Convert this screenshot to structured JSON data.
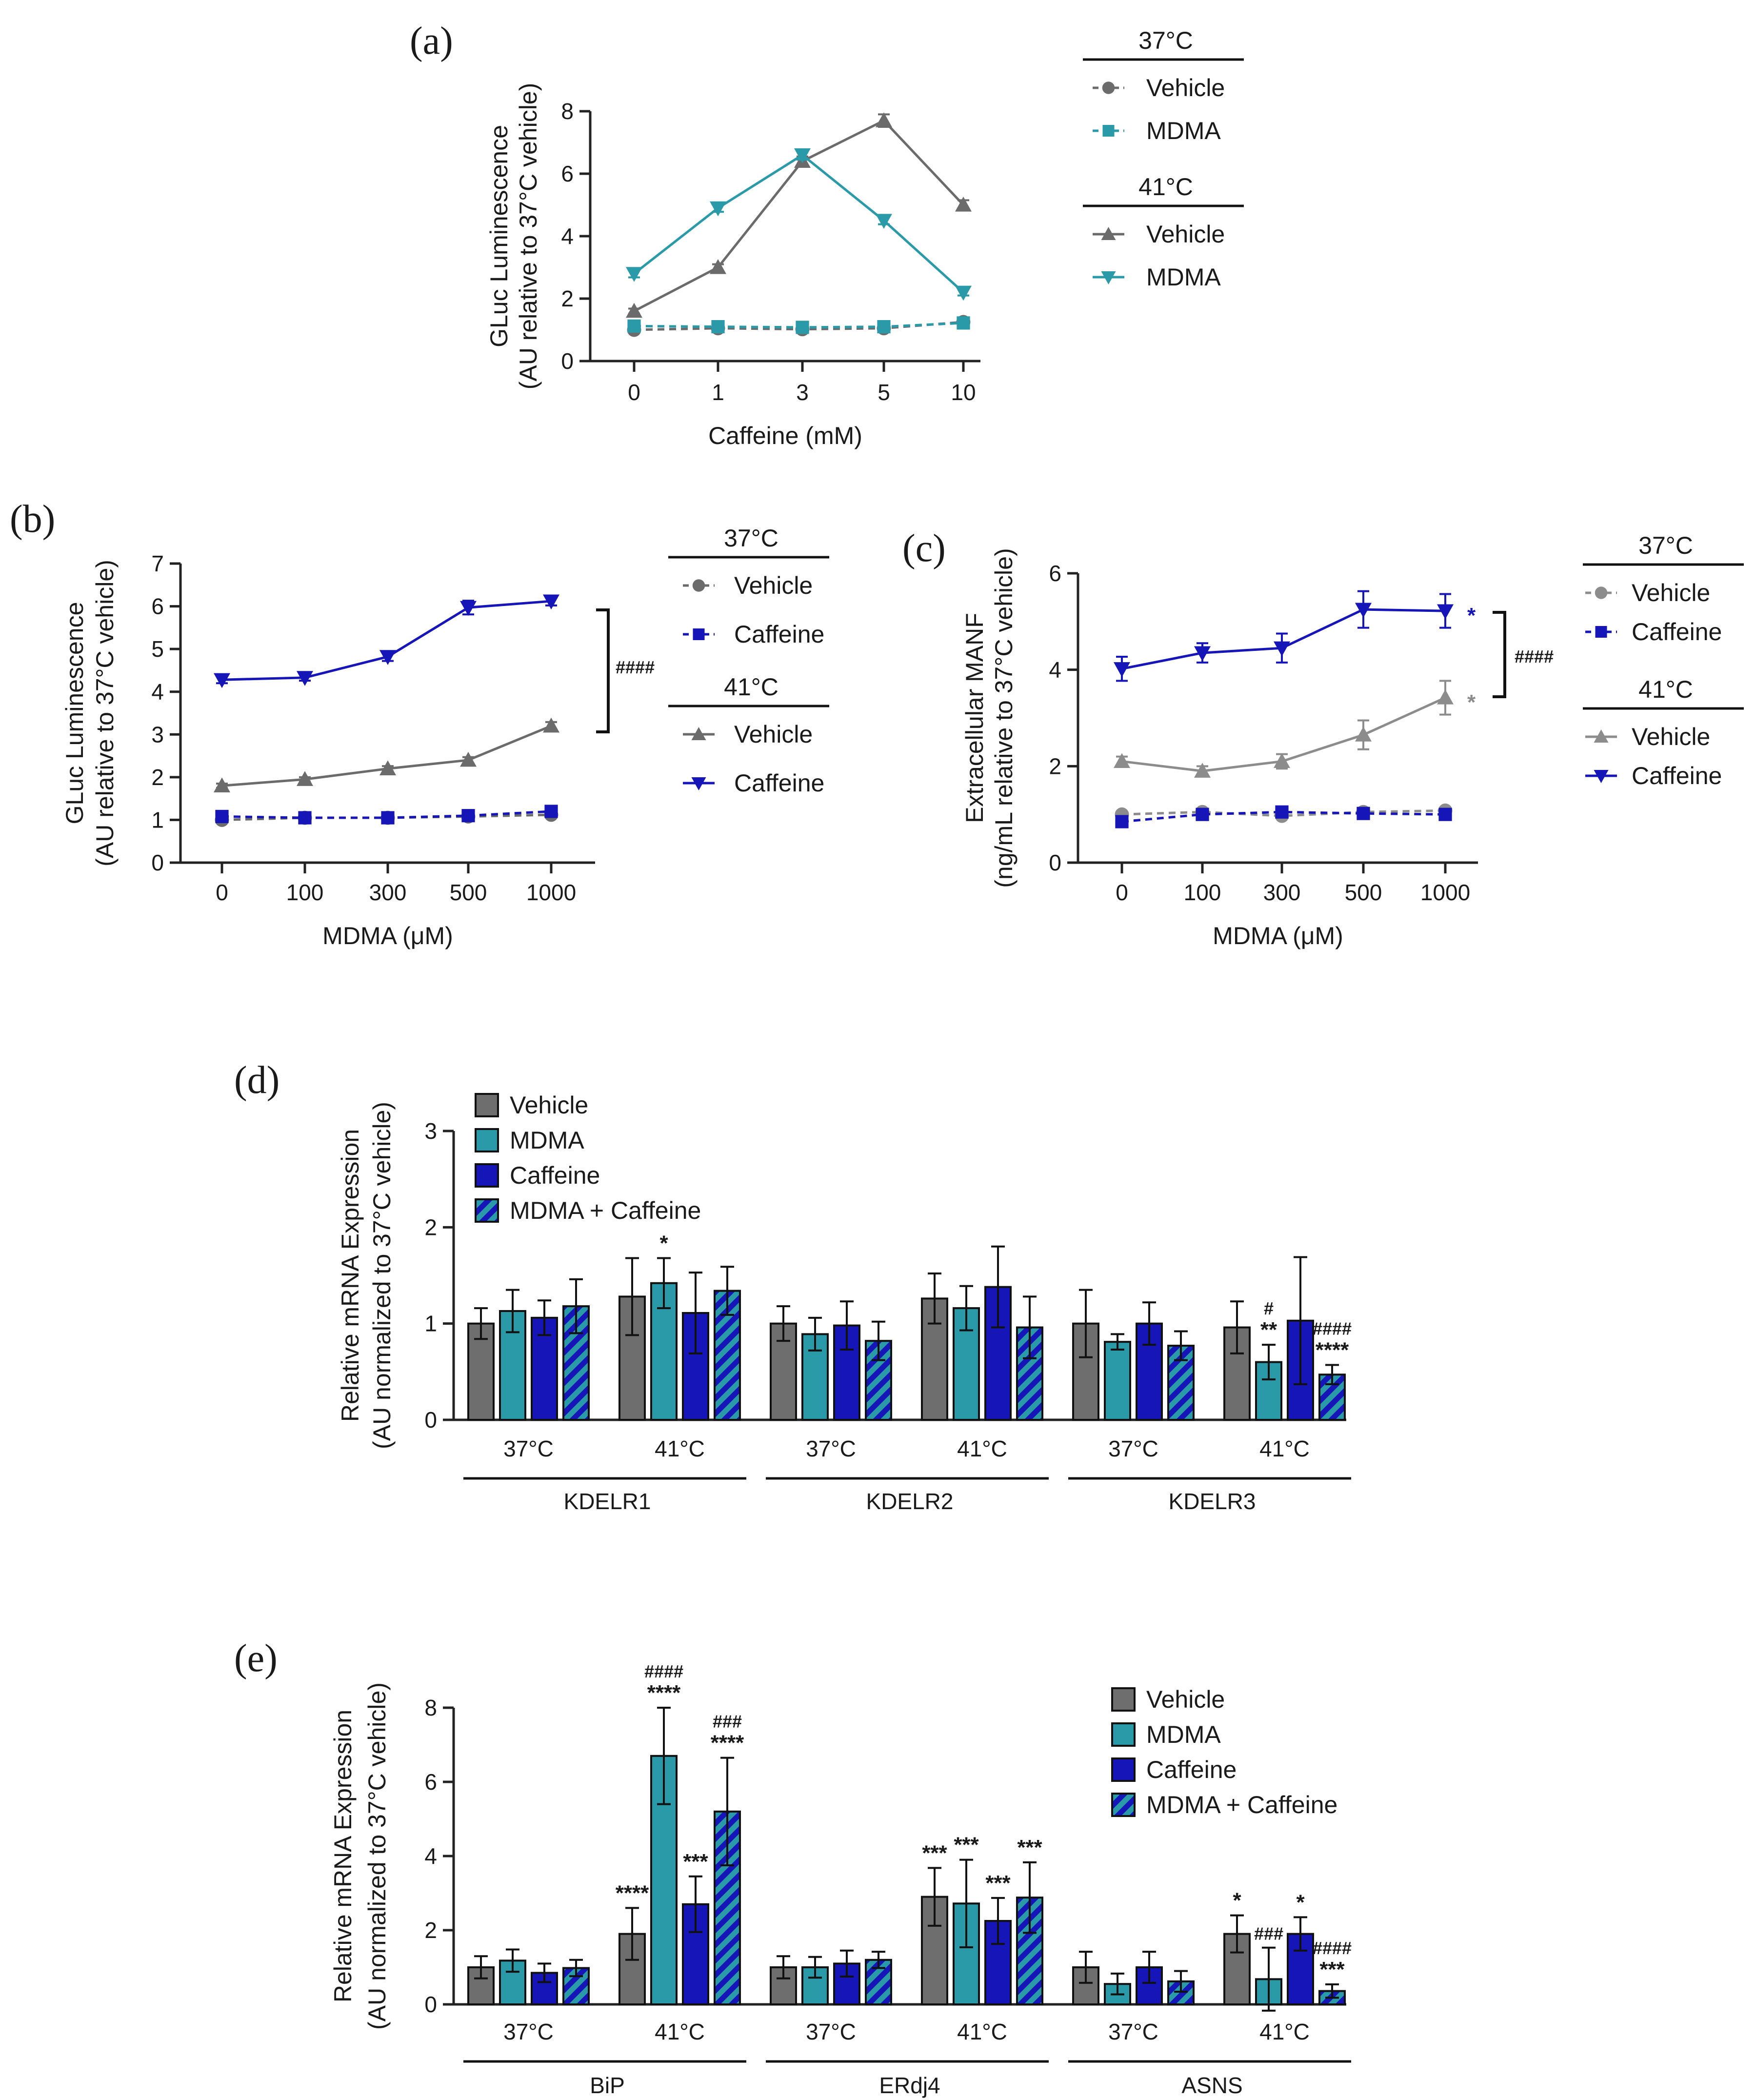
{
  "panels": [
    {
      "id": "a",
      "letter": "(a)",
      "chart_data": {
        "type": "line",
        "xlabel": "Caffeine (mM)",
        "ylabel_lines": [
          "GLuc Luminescence",
          "(AU relative to 37°C vehicle)"
        ],
        "categories": [
          "0",
          "1",
          "3",
          "5",
          "10"
        ],
        "ylim": [
          0,
          8
        ],
        "yticks": [
          0,
          2,
          4,
          6,
          8
        ],
        "legend": [
          {
            "header": "37°C",
            "entries": [
              "Vehicle",
              "MDMA"
            ]
          },
          {
            "header": "41°C",
            "entries": [
              "Vehicle",
              "MDMA"
            ]
          }
        ],
        "series": [
          {
            "name": "37°C Vehicle",
            "color": "#6b6b6b",
            "marker": "circle",
            "dashed": true,
            "values": [
              1.0,
              1.05,
              1.02,
              1.05,
              1.25
            ],
            "errors": [
              0.06,
              0.06,
              0.06,
              0.06,
              0.08
            ]
          },
          {
            "name": "37°C MDMA",
            "color": "#2b9aa8",
            "marker": "square",
            "dashed": true,
            "values": [
              1.12,
              1.1,
              1.08,
              1.1,
              1.22
            ],
            "errors": [
              0.06,
              0.06,
              0.06,
              0.06,
              0.06
            ]
          },
          {
            "name": "41°C Vehicle",
            "color": "#6b6b6b",
            "marker": "triangle-up",
            "dashed": false,
            "values": [
              1.6,
              3.0,
              6.4,
              7.7,
              5.0
            ],
            "errors": [
              0.08,
              0.1,
              0.15,
              0.2,
              0.15
            ]
          },
          {
            "name": "41°C MDMA",
            "color": "#2b9aa8",
            "marker": "triangle-down",
            "dashed": false,
            "values": [
              2.8,
              4.9,
              6.6,
              4.5,
              2.2
            ],
            "errors": [
              0.12,
              0.12,
              0.15,
              0.12,
              0.1
            ]
          }
        ]
      }
    },
    {
      "id": "b",
      "letter": "(b)",
      "chart_data": {
        "type": "line",
        "xlabel": "MDMA (μM)",
        "ylabel_lines": [
          "GLuc Luminescence",
          "(AU relative to 37°C vehicle)"
        ],
        "categories": [
          "0",
          "100",
          "300",
          "500",
          "1000"
        ],
        "ylim": [
          0,
          7
        ],
        "yticks": [
          0,
          1,
          2,
          3,
          4,
          5,
          6,
          7
        ],
        "legend": [
          {
            "header": "37°C",
            "entries": [
              "Vehicle",
              "Caffeine"
            ]
          },
          {
            "header": "41°C",
            "entries": [
              "Vehicle",
              "Caffeine"
            ]
          }
        ],
        "bracket_label": "####",
        "series": [
          {
            "name": "37°C Vehicle",
            "color": "#6b6b6b",
            "marker": "circle",
            "dashed": true,
            "values": [
              1.0,
              1.05,
              1.05,
              1.08,
              1.12
            ],
            "errors": [
              0.04,
              0.04,
              0.04,
              0.04,
              0.05
            ]
          },
          {
            "name": "37°C Caffeine",
            "color": "#1616b8",
            "marker": "square",
            "dashed": true,
            "values": [
              1.08,
              1.05,
              1.05,
              1.1,
              1.2
            ],
            "errors": [
              0.04,
              0.04,
              0.04,
              0.04,
              0.05
            ]
          },
          {
            "name": "41°C Vehicle",
            "color": "#6b6b6b",
            "marker": "triangle-up",
            "dashed": false,
            "values": [
              1.8,
              1.95,
              2.2,
              2.4,
              3.2
            ],
            "errors": [
              0.05,
              0.05,
              0.06,
              0.07,
              0.09
            ]
          },
          {
            "name": "41°C Caffeine",
            "color": "#1616b8",
            "marker": "triangle-down",
            "dashed": false,
            "values": [
              4.28,
              4.33,
              4.82,
              5.97,
              6.12
            ],
            "errors": [
              0.08,
              0.07,
              0.1,
              0.16,
              0.1
            ]
          }
        ]
      }
    },
    {
      "id": "c",
      "letter": "(c)",
      "chart_data": {
        "type": "line",
        "xlabel": "MDMA (μM)",
        "ylabel_lines": [
          "Extracellular MANF",
          "(ng/mL relative to 37°C vehicle)"
        ],
        "categories": [
          "0",
          "100",
          "300",
          "500",
          "1000"
        ],
        "ylim": [
          0,
          6
        ],
        "yticks": [
          0,
          2,
          4,
          6
        ],
        "legend": [
          {
            "header": "37°C",
            "entries": [
              "Vehicle",
              "Caffeine"
            ]
          },
          {
            "header": "41°C",
            "entries": [
              "Vehicle",
              "Caffeine"
            ]
          }
        ],
        "bracket_label": "####",
        "star_label": "*",
        "series": [
          {
            "name": "37°C Vehicle",
            "color": "#8c8c8c",
            "marker": "circle",
            "dashed": true,
            "values": [
              1.0,
              1.05,
              0.97,
              1.05,
              1.08
            ],
            "errors": [
              0.05,
              0.05,
              0.05,
              0.05,
              0.05
            ]
          },
          {
            "name": "37°C Caffeine",
            "color": "#1616b8",
            "marker": "square",
            "dashed": true,
            "values": [
              0.85,
              1.0,
              1.05,
              1.02,
              1.0
            ],
            "errors": [
              0.05,
              0.05,
              0.05,
              0.05,
              0.05
            ]
          },
          {
            "name": "41°C Vehicle",
            "color": "#8c8c8c",
            "marker": "triangle-up",
            "dashed": false,
            "values": [
              2.1,
              1.9,
              2.1,
              2.65,
              3.42
            ],
            "errors": [
              0.1,
              0.1,
              0.15,
              0.3,
              0.35
            ]
          },
          {
            "name": "41°C Caffeine",
            "color": "#1616b8",
            "marker": "triangle-down",
            "dashed": false,
            "values": [
              4.02,
              4.35,
              4.45,
              5.25,
              5.22
            ],
            "errors": [
              0.25,
              0.2,
              0.3,
              0.38,
              0.35
            ]
          }
        ]
      }
    },
    {
      "id": "d",
      "letter": "(d)",
      "chart_data": {
        "type": "bar",
        "ylabel_lines": [
          "Relative mRNA Expression",
          "(AU normalized to 37°C vehicle)"
        ],
        "ylim": [
          0,
          3
        ],
        "yticks": [
          0,
          1,
          2,
          3
        ],
        "legend_entries": [
          "Vehicle",
          "MDMA",
          "Caffeine",
          "MDMA + Caffeine"
        ],
        "colors": [
          "#6e6e6e",
          "#2b9aa8",
          "#1616b8",
          "hatched"
        ],
        "genes": [
          {
            "name": "KDELR1",
            "groups": [
              {
                "label": "37°C",
                "values": [
                  1.0,
                  1.13,
                  1.06,
                  1.18
                ],
                "errors": [
                  0.16,
                  0.22,
                  0.18,
                  0.28
                ],
                "sig": [
                  "",
                  "",
                  "",
                  ""
                ]
              },
              {
                "label": "41°C",
                "values": [
                  1.28,
                  1.42,
                  1.11,
                  1.34
                ],
                "errors": [
                  0.4,
                  0.26,
                  0.42,
                  0.25
                ],
                "sig": [
                  "",
                  "*",
                  "",
                  ""
                ]
              }
            ]
          },
          {
            "name": "KDELR2",
            "groups": [
              {
                "label": "37°C",
                "values": [
                  1.0,
                  0.89,
                  0.98,
                  0.82
                ],
                "errors": [
                  0.18,
                  0.17,
                  0.25,
                  0.2
                ],
                "sig": [
                  "",
                  "",
                  "",
                  ""
                ]
              },
              {
                "label": "41°C",
                "values": [
                  1.26,
                  1.16,
                  1.38,
                  0.96
                ],
                "errors": [
                  0.26,
                  0.23,
                  0.42,
                  0.32
                ],
                "sig": [
                  "",
                  "",
                  "",
                  ""
                ]
              }
            ]
          },
          {
            "name": "KDELR3",
            "groups": [
              {
                "label": "37°C",
                "values": [
                  1.0,
                  0.81,
                  1.0,
                  0.77
                ],
                "errors": [
                  0.35,
                  0.08,
                  0.22,
                  0.15
                ],
                "sig": [
                  "",
                  "",
                  "",
                  ""
                ]
              },
              {
                "label": "41°C",
                "values": [
                  0.96,
                  0.6,
                  1.03,
                  0.47
                ],
                "errors": [
                  0.27,
                  0.18,
                  0.66,
                  0.1
                ],
                "sig": [
                  "",
                  "**",
                  "",
                  "****"
                ],
                "sig2": [
                  "",
                  "#",
                  "",
                  "####"
                ]
              }
            ]
          }
        ]
      }
    },
    {
      "id": "e",
      "letter": "(e)",
      "chart_data": {
        "type": "bar",
        "ylabel_lines": [
          "Relative mRNA Expression",
          "(AU normalized to 37°C vehicle)"
        ],
        "ylim": [
          0,
          8
        ],
        "yticks": [
          0,
          2,
          4,
          6,
          8
        ],
        "legend_entries": [
          "Vehicle",
          "MDMA",
          "Caffeine",
          "MDMA + Caffeine"
        ],
        "colors": [
          "#6e6e6e",
          "#2b9aa8",
          "#1616b8",
          "hatched"
        ],
        "genes": [
          {
            "name": "BiP",
            "groups": [
              {
                "label": "37°C",
                "values": [
                  1.0,
                  1.18,
                  0.85,
                  0.98
                ],
                "errors": [
                  0.3,
                  0.3,
                  0.25,
                  0.22
                ],
                "sig": [
                  "",
                  "",
                  "",
                  ""
                ]
              },
              {
                "label": "41°C",
                "values": [
                  1.9,
                  6.7,
                  2.7,
                  5.2
                ],
                "errors": [
                  0.7,
                  1.3,
                  0.75,
                  1.45
                ],
                "sig": [
                  "****",
                  "****",
                  "***",
                  "****"
                ],
                "sig2": [
                  "",
                  "####",
                  "",
                  "###"
                ]
              }
            ]
          },
          {
            "name": "ERdj4",
            "groups": [
              {
                "label": "37°C",
                "values": [
                  1.0,
                  1.0,
                  1.1,
                  1.2
                ],
                "errors": [
                  0.3,
                  0.28,
                  0.35,
                  0.22
                ],
                "sig": [
                  "",
                  "",
                  "",
                  ""
                ]
              },
              {
                "label": "41°C",
                "values": [
                  2.9,
                  2.72,
                  2.25,
                  2.88
                ],
                "errors": [
                  0.78,
                  1.18,
                  0.62,
                  0.95
                ],
                "sig": [
                  "***",
                  "***",
                  "***",
                  "***"
                ]
              }
            ]
          },
          {
            "name": "ASNS",
            "groups": [
              {
                "label": "37°C",
                "values": [
                  1.0,
                  0.55,
                  1.0,
                  0.62
                ],
                "errors": [
                  0.42,
                  0.28,
                  0.42,
                  0.28
                ],
                "sig": [
                  "",
                  "",
                  "",
                  ""
                ]
              },
              {
                "label": "41°C",
                "values": [
                  1.9,
                  0.68,
                  1.9,
                  0.36
                ],
                "errors": [
                  0.5,
                  0.85,
                  0.45,
                  0.18
                ],
                "sig": [
                  "*",
                  "",
                  "*",
                  "***"
                ],
                "sig2": [
                  "",
                  "###",
                  "",
                  "####"
                ]
              }
            ]
          }
        ]
      }
    }
  ]
}
